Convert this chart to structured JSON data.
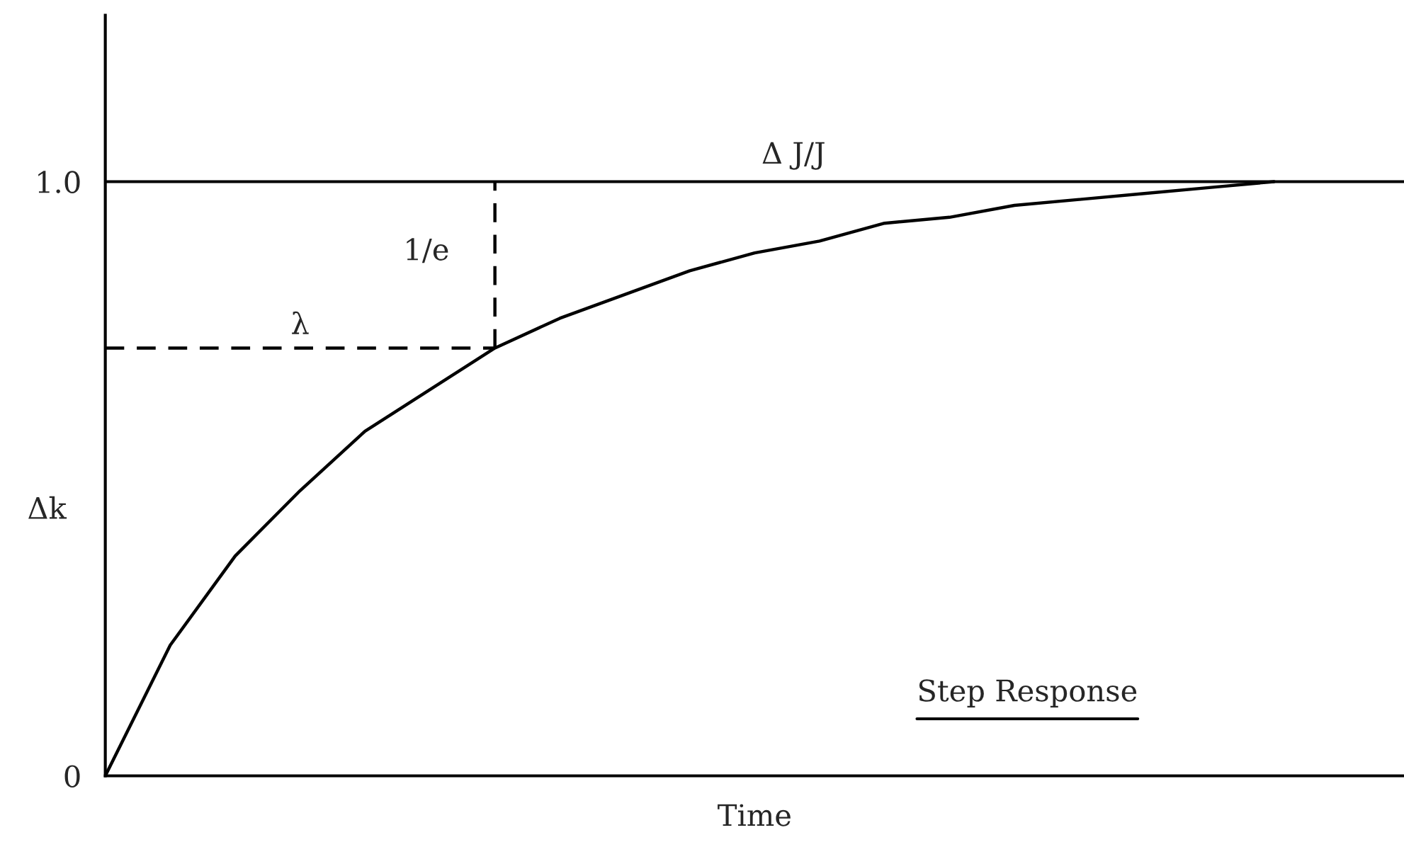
{
  "chart_data": {
    "type": "line",
    "xlabel": "Time",
    "ylabel": "Δk",
    "categories": [
      null,
      null,
      null,
      null,
      null,
      null,
      null,
      null,
      null,
      null,
      null,
      null,
      null,
      null,
      null,
      null,
      null,
      null,
      null,
      null,
      null
    ],
    "ylim": [
      0,
      1.28
    ],
    "yticks": [
      0,
      {
        "value": 1.0,
        "label": "1.0"
      }
    ],
    "tick_labels": "y",
    "series": [
      {
        "color": "#000000",
        "line_style": "solid",
        "values": [
          0,
          0.22,
          0.37,
          0.48,
          0.58,
          0.65,
          0.72,
          0.77,
          0.81,
          0.85,
          0.88,
          0.9,
          0.93,
          0.94,
          0.96,
          0.97,
          0.98,
          0.99,
          1.0,
          null,
          null
        ]
      },
      {
        "color": "#000000",
        "line_style": "dashed",
        "values": [
          0.72,
          0.72,
          0.72,
          0.72,
          0.72,
          0.72,
          0.72,
          null,
          null,
          null,
          null,
          null,
          null,
          null,
          null,
          null,
          null,
          null,
          null,
          null,
          null
        ]
      }
    ],
    "ref_lines": [
      {
        "axis": "y",
        "value": 1.0,
        "label": "Δ J/J",
        "color": "#000000",
        "line_style": "solid"
      }
    ],
    "annotations": [
      {
        "text": "λ",
        "y": 0.72
      },
      "1/e",
      "Step Response"
    ]
  }
}
